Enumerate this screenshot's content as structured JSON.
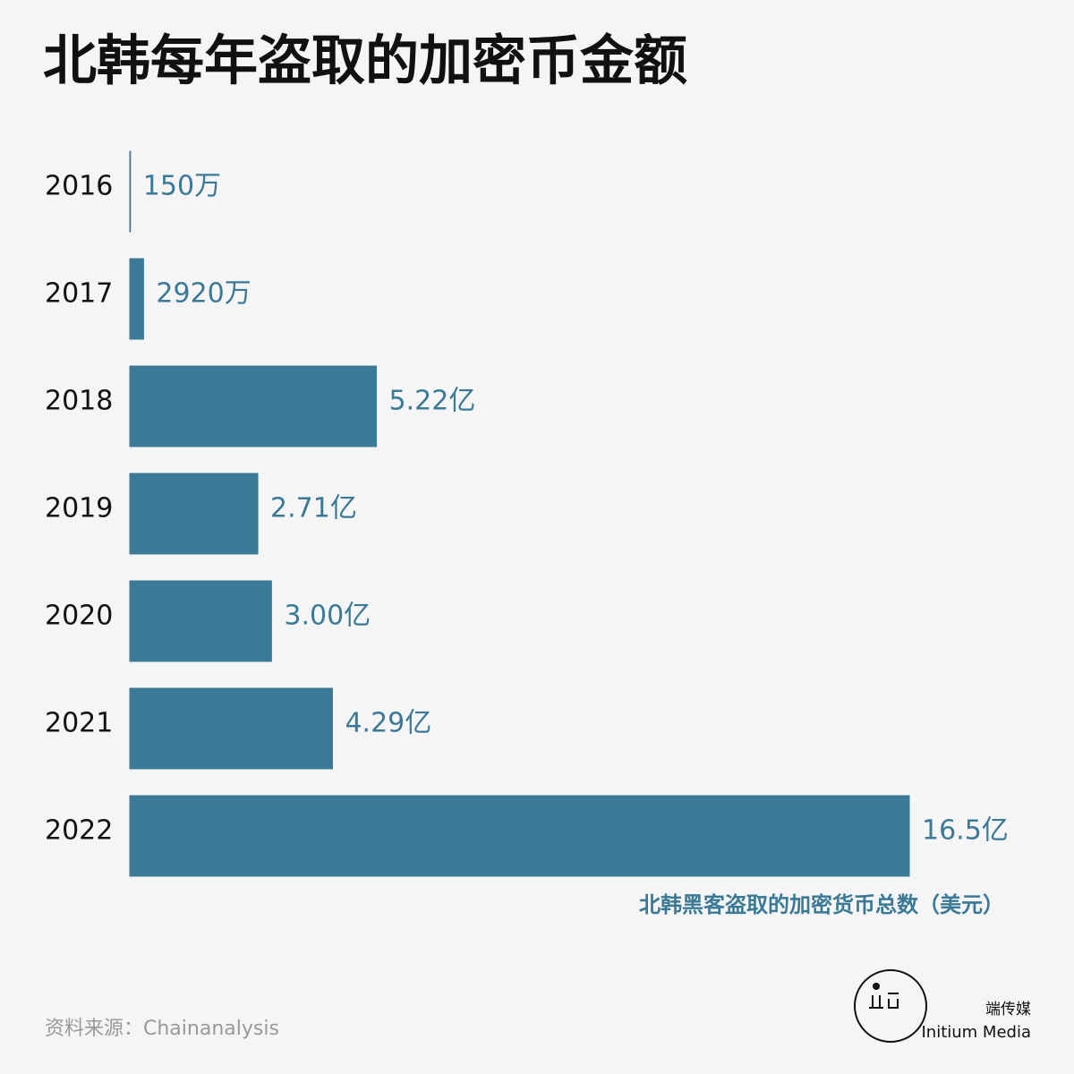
{
  "chart_data": {
    "type": "bar",
    "orientation": "horizontal",
    "title": "北韩每年盗取的加密币金额",
    "categories": [
      "2016",
      "2017",
      "2018",
      "2019",
      "2020",
      "2021",
      "2022"
    ],
    "values": [
      1500000,
      29200000,
      522000000,
      271000000,
      300000000,
      429000000,
      1650000000
    ],
    "value_labels": [
      "150万",
      "2920万",
      "5.22亿",
      "2.71亿",
      "3.00亿",
      "4.29亿",
      "16.5亿"
    ],
    "color": "#3b7a96",
    "axis_label": "北韩黑客盗取的加密货币总数（美元）",
    "source": "资料来源：Chainanalysis",
    "brand": {
      "name_cn": "端传媒",
      "name_en": "Initium Media"
    }
  }
}
